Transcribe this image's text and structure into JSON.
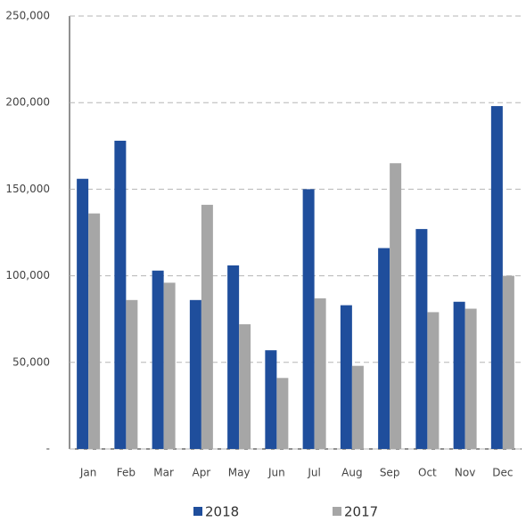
{
  "chart_data": {
    "type": "bar",
    "categories": [
      "Jan",
      "Feb",
      "Mar",
      "Apr",
      "May",
      "Jun",
      "Jul",
      "Aug",
      "Sep",
      "Oct",
      "Nov",
      "Dec"
    ],
    "series": [
      {
        "name": "2018",
        "color": "#1f4e9c",
        "values": [
          156000,
          178000,
          103000,
          86000,
          106000,
          57000,
          150000,
          83000,
          116000,
          127000,
          85000,
          198000
        ]
      },
      {
        "name": "2017",
        "color": "#a6a6a6",
        "values": [
          136000,
          86000,
          96000,
          141000,
          72000,
          41000,
          87000,
          48000,
          165000,
          79000,
          81000,
          100000
        ]
      }
    ],
    "ylim": [
      0,
      250000
    ],
    "yticks": [
      {
        "value": 0,
        "label": "-"
      },
      {
        "value": 50000,
        "label": "50,000"
      },
      {
        "value": 100000,
        "label": "100,000"
      },
      {
        "value": 150000,
        "label": "150,000"
      },
      {
        "value": 200000,
        "label": "200,000"
      },
      {
        "value": 250000,
        "label": "250,000"
      }
    ],
    "grid": true
  }
}
